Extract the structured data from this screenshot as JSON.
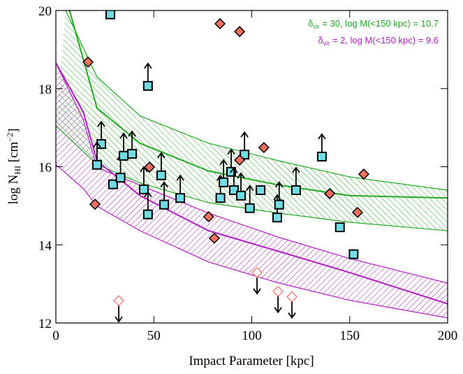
{
  "chart_data": {
    "type": "scatter",
    "xlabel": "Impact Parameter [kpc]",
    "ylabel_parts": [
      "log N",
      "HI",
      " [cm",
      "−2",
      "]"
    ],
    "xlim": [
      0,
      200
    ],
    "ylim": [
      12,
      20
    ],
    "xticks": [
      0,
      50,
      100,
      150,
      200
    ],
    "yticks": [
      12,
      14,
      16,
      18,
      20
    ],
    "annotations": [
      {
        "color": "#22aa22",
        "parts": [
          "δ",
          "vir",
          " = 30, log M(<150 kpc) = 10.7"
        ]
      },
      {
        "color": "#b020c0",
        "parts": [
          "δ",
          "vir",
          " = 2, log M(<150 kpc) = 9.6"
        ]
      }
    ],
    "bands": [
      {
        "color": "#22aa22",
        "upper": {
          "x": [
            5,
            21,
            43,
            78,
            114,
            150,
            200
          ],
          "y": [
            20.0,
            18.3,
            17.3,
            16.6,
            16.15,
            15.74,
            15.4
          ]
        },
        "center": {
          "x": [
            7,
            21,
            43,
            78,
            114,
            150,
            200
          ],
          "y": [
            20.0,
            17.5,
            16.6,
            15.89,
            15.53,
            15.26,
            15.2
          ]
        },
        "lower": {
          "x": [
            0,
            21,
            43,
            78,
            114,
            150,
            200
          ],
          "y": [
            17.05,
            16.06,
            15.58,
            15.08,
            14.81,
            14.58,
            14.36
          ]
        }
      },
      {
        "color": "#b020c0",
        "upper": {
          "x": [
            0,
            14,
            21,
            43,
            78,
            114,
            150,
            200
          ],
          "y": [
            18.66,
            17.2,
            15.98,
            15.53,
            14.81,
            14.19,
            13.65,
            13.02
          ]
        },
        "center": {
          "x": [
            0,
            14,
            21,
            43,
            78,
            114,
            150,
            200
          ],
          "y": [
            18.66,
            17.4,
            16.15,
            15.26,
            14.36,
            13.83,
            13.29,
            12.49
          ]
        },
        "lower": {
          "x": [
            0,
            14,
            21,
            43,
            78,
            114,
            150,
            200
          ],
          "y": [
            16.06,
            15.44,
            14.99,
            14.36,
            13.56,
            13.02,
            12.58,
            12.13
          ]
        }
      }
    ],
    "series": [
      {
        "marker": "square",
        "color": "#70dde5",
        "x": [
          27.8,
          47,
          23.2,
          21,
          29.2,
          33,
          34.6,
          38.9,
          44.9,
          47,
          53.8,
          55.3,
          63.5,
          84,
          85.6,
          89.5,
          90.9,
          94.5,
          96.3,
          99,
          104.5,
          113,
          114,
          122.6,
          135.8,
          145,
          152
        ],
        "y": [
          19.9,
          18.07,
          16.58,
          16.05,
          15.55,
          15.72,
          16.28,
          16.33,
          15.42,
          14.78,
          15.78,
          15.03,
          15.2,
          15.2,
          15.6,
          15.87,
          15.4,
          15.26,
          16.31,
          14.94,
          15.4,
          14.7,
          15.03,
          15.4,
          16.26,
          14.45,
          13.76
        ],
        "lower_limit": [
          false,
          true,
          true,
          true,
          false,
          true,
          true,
          true,
          true,
          true,
          true,
          true,
          true,
          true,
          true,
          true,
          true,
          true,
          true,
          true,
          false,
          true,
          true,
          true,
          true,
          false,
          false
        ]
      },
      {
        "marker": "diamond",
        "color": "#f07060",
        "x": [
          16.4,
          20,
          47.8,
          78,
          80.9,
          83.8,
          93.8,
          93.8,
          106.2,
          139.8,
          154,
          157.2
        ],
        "y": [
          18.68,
          15.04,
          15.99,
          14.72,
          14.17,
          19.66,
          19.46,
          16.17,
          16.49,
          15.31,
          14.83,
          15.81
        ]
      },
      {
        "marker": "open-diamond",
        "color": "#f07060",
        "upper_limit": true,
        "x": [
          32.1,
          102.7,
          113.4,
          120.5
        ],
        "y": [
          12.57,
          13.29,
          12.81,
          12.67
        ]
      }
    ]
  }
}
